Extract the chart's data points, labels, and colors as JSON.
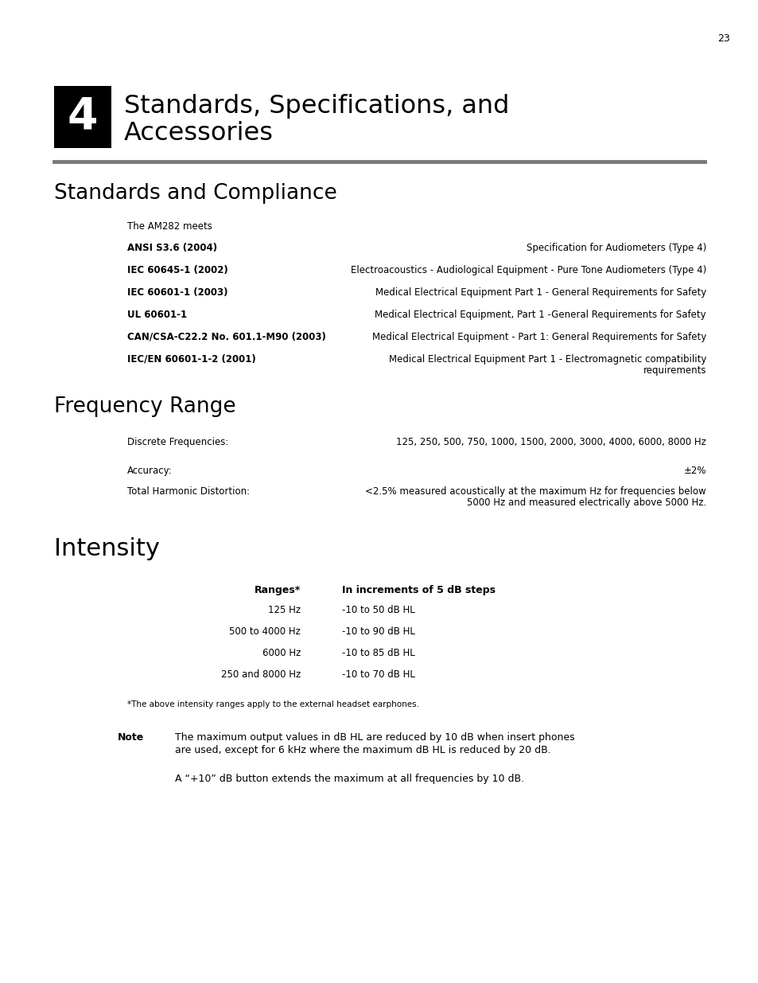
{
  "page_number": "23",
  "chapter_number": "4",
  "chapter_title_line1": "Standards, Specifications, and",
  "chapter_title_line2": "Accessories",
  "section1_title": "Standards and Compliance",
  "section1_intro": "The AM282 meets",
  "standards": [
    {
      "name": "ANSI S3.6 (2004)",
      "description": "Specification for Audiometers (Type 4)"
    },
    {
      "name": "IEC 60645-1 (2002)",
      "description": "Electroacoustics - Audiological Equipment - Pure Tone Audiometers (Type 4)"
    },
    {
      "name": "IEC 60601-1 (2003)",
      "description": "Medical Electrical Equipment Part 1 - General Requirements for Safety"
    },
    {
      "name": "UL 60601-1",
      "description": "Medical Electrical Equipment, Part 1 -General Requirements for Safety"
    },
    {
      "name": "CAN/CSA-C22.2 No. 601.1-M90 (2003)",
      "description": "Medical Electrical Equipment - Part 1: General Requirements for Safety"
    },
    {
      "name": "IEC/EN 60601-1-2 (2001)",
      "description": "Medical Electrical Equipment Part 1 - Electromagnetic compatibility\nrequirements"
    }
  ],
  "section2_title": "Frequency Range",
  "freq_discrete_label": "Discrete Frequencies:",
  "freq_discrete_value": "125, 250, 500, 750, 1000, 1500, 2000, 3000, 4000, 6000, 8000 Hz",
  "freq_accuracy_label": "Accuracy:",
  "freq_accuracy_value": "±2%",
  "freq_thd_label": "Total Harmonic Distortion:",
  "freq_thd_value_line1": "<2.5% measured acoustically at the maximum Hz for frequencies below",
  "freq_thd_value_line2": "5000 Hz and measured electrically above 5000 Hz.",
  "section3_title": "Intensity",
  "intensity_col1_header": "Ranges*",
  "intensity_col2_header": "In increments of 5 dB steps",
  "intensity_rows": [
    [
      "125 Hz",
      "-10 to 50 dB HL"
    ],
    [
      "500 to 4000 Hz",
      "-10 to 90 dB HL"
    ],
    [
      "6000 Hz",
      "-10 to 85 dB HL"
    ],
    [
      "250 and 8000 Hz",
      "-10 to 70 dB HL"
    ]
  ],
  "intensity_footnote": "*The above intensity ranges apply to the external headset earphones.",
  "note_label": "Note",
  "note_text1_line1": "The maximum output values in dB HL are reduced by 10 dB when insert phones",
  "note_text1_line2": "are used, except for 6 kHz where the maximum dB HL is reduced by 20 dB.",
  "note_text2": "A “+10” dB button extends the maximum at all frequencies by 10 dB.",
  "bg_color": "#ffffff",
  "text_color": "#000000",
  "chapter_box_color": "#000000",
  "chapter_number_color": "#ffffff",
  "separator_color": "#7a7a7a"
}
